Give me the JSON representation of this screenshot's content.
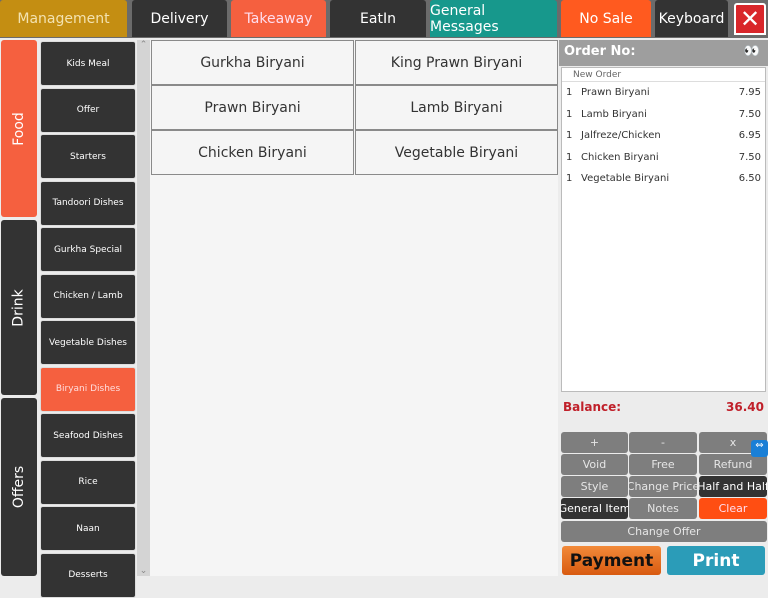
{
  "topbar": {
    "management": "Management",
    "delivery": "Delivery",
    "takeaway": "Takeaway",
    "eatin": "EatIn",
    "general_messages": "General Messages",
    "no_sale": "No Sale",
    "keyboard": "Keyboard",
    "close_icon": "close-x-icon"
  },
  "colors": {
    "management": "#c48e12",
    "active": "#f5603f",
    "teal": "#17988c",
    "no_sale": "#ff5a1f",
    "dark": "#333333",
    "close": "#d9262a",
    "balance": "#c0202a"
  },
  "sections": [
    {
      "label": "Food",
      "active": true
    },
    {
      "label": "Drink"
    },
    {
      "label": "Offers"
    }
  ],
  "categories": [
    "Kids Meal",
    "Offer",
    "Starters",
    "Tandoori Dishes",
    "Gurkha Special",
    "Chicken / Lamb",
    "Vegetable Dishes",
    "Biryani Dishes",
    "Seafood Dishes",
    "Rice",
    "Naan",
    "Desserts"
  ],
  "active_category": "Biryani Dishes",
  "products": [
    "Gurkha Biryani",
    "King Prawn Biryani",
    "Prawn Biryani",
    "Lamb Biryani",
    "Chicken Biryani",
    "Vegetable Biryani"
  ],
  "order": {
    "title": "Order No:",
    "subheader": "New Order",
    "items": [
      {
        "qty": "1",
        "name": "Prawn Biryani",
        "price": "7.95"
      },
      {
        "qty": "1",
        "name": "Lamb Biryani",
        "price": "7.50"
      },
      {
        "qty": "1",
        "name": "Jalfreze/Chicken",
        "price": "6.95"
      },
      {
        "qty": "1",
        "name": "Chicken Biryani",
        "price": "7.50"
      },
      {
        "qty": "1",
        "name": "Vegetable Biryani",
        "price": "6.50"
      }
    ],
    "balance_label": "Balance:",
    "balance": "36.40"
  },
  "functions": {
    "plus": "+",
    "minus": "-",
    "x": "x",
    "void": "Void",
    "free": "Free",
    "refund": "Refund",
    "style": "Style",
    "change_price": "Change Price",
    "half_and_half": "Half and Half",
    "general_item": "General Item",
    "notes": "Notes",
    "clear": "Clear",
    "change_offer": "Change Offer",
    "payment": "Payment",
    "print": "Print"
  }
}
